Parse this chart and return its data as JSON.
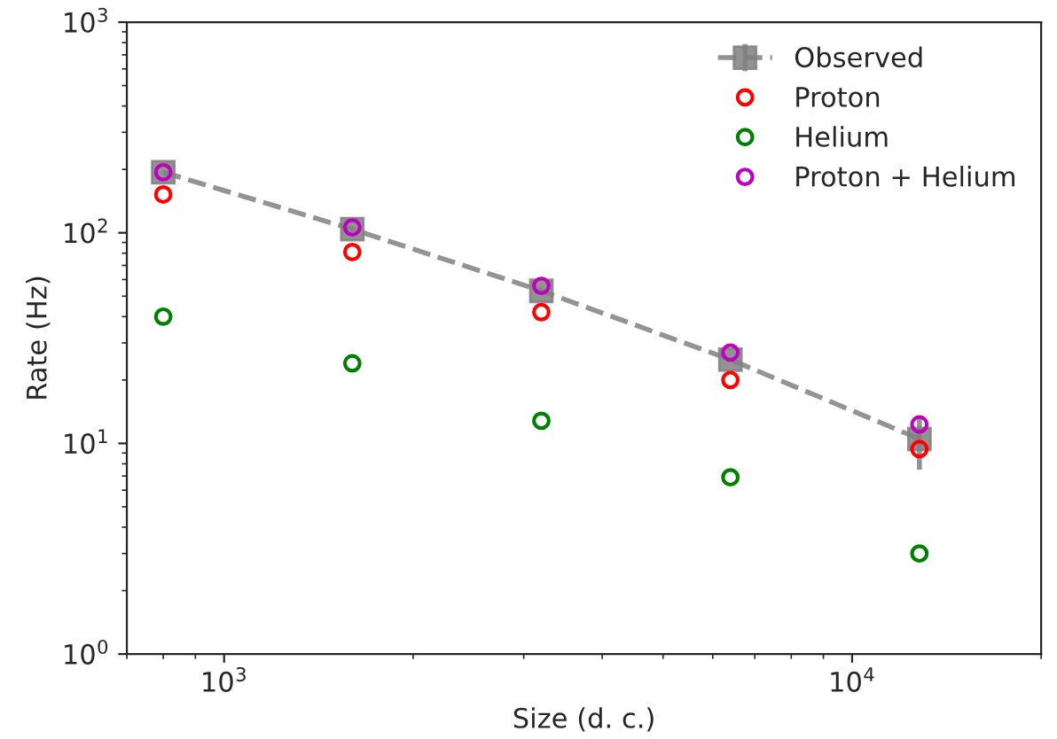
{
  "chart_data": {
    "type": "scatter",
    "xlabel": "Size (d. c.)",
    "ylabel": "Rate (Hz)",
    "log": "xy",
    "x": [
      800,
      1600,
      3200,
      6400,
      12800
    ],
    "xlim": [
      700,
      20000
    ],
    "xticks": [
      {
        "value": 1000,
        "label": "10$^{3}$"
      },
      {
        "value": 10000,
        "label": "10$^{4}$"
      }
    ],
    "ylim": [
      1,
      1000
    ],
    "yticks": [
      {
        "value": 1,
        "label": "10$^{0}$"
      },
      {
        "value": 10,
        "label": "10$^{1}$"
      },
      {
        "value": 100,
        "label": "10$^{2}$"
      },
      {
        "value": 1000,
        "label": "10$^{3}$"
      }
    ],
    "grid": false,
    "legend": "top right",
    "series": [
      {
        "name": "Observed",
        "type": "line",
        "color": "#808080",
        "marker": "square",
        "line_style": "dashed",
        "values": [
          194,
          104,
          53,
          25,
          10.5
        ],
        "errors": [
          null,
          null,
          null,
          null,
          3
        ]
      },
      {
        "name": "Proton",
        "color": "#ff0000",
        "marker": "circle",
        "values": [
          152,
          81,
          42,
          20,
          9.4
        ]
      },
      {
        "name": "Helium",
        "color": "#008000",
        "marker": "circle",
        "values": [
          40,
          24,
          12.8,
          6.9,
          3.0
        ]
      },
      {
        "name": "Proton + Helium",
        "color": "#bf00bf",
        "marker": "circle",
        "values": [
          194,
          106,
          56,
          27,
          12.3
        ]
      }
    ]
  }
}
